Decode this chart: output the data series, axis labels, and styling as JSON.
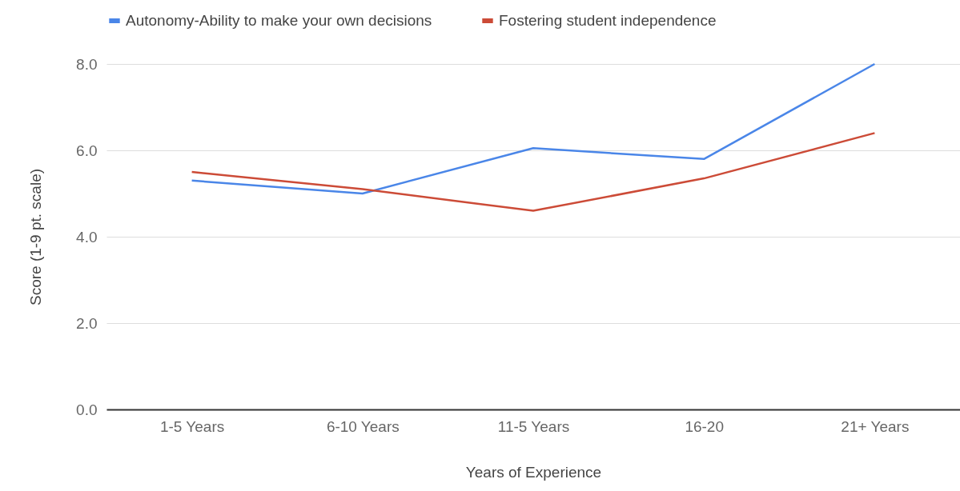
{
  "chart_data": {
    "type": "line",
    "xlabel": "Years of Experience",
    "ylabel": "Score (1-9 pt. scale)",
    "categories": [
      "1-5 Years",
      "6-10 Years",
      "11-5 Years",
      "16-20",
      "21+ Years"
    ],
    "series": [
      {
        "name": "Autonomy-Ability to make your own decisions",
        "color": "#4a86e8",
        "values": [
          5.3,
          5.0,
          6.05,
          5.8,
          8.0
        ]
      },
      {
        "name": "Fostering student independence",
        "color": "#cc4b37",
        "values": [
          5.5,
          5.1,
          4.6,
          5.35,
          6.4
        ]
      }
    ],
    "ylim": [
      0,
      8
    ],
    "yticks": [
      {
        "value": 0,
        "label": "0.0"
      },
      {
        "value": 2,
        "label": "2.0"
      },
      {
        "value": 4,
        "label": "4.0"
      },
      {
        "value": 6,
        "label": "6.0"
      },
      {
        "value": 8,
        "label": "8.0"
      }
    ],
    "grid": "y",
    "legend": "top",
    "marker": "none",
    "line_style": "solid"
  }
}
